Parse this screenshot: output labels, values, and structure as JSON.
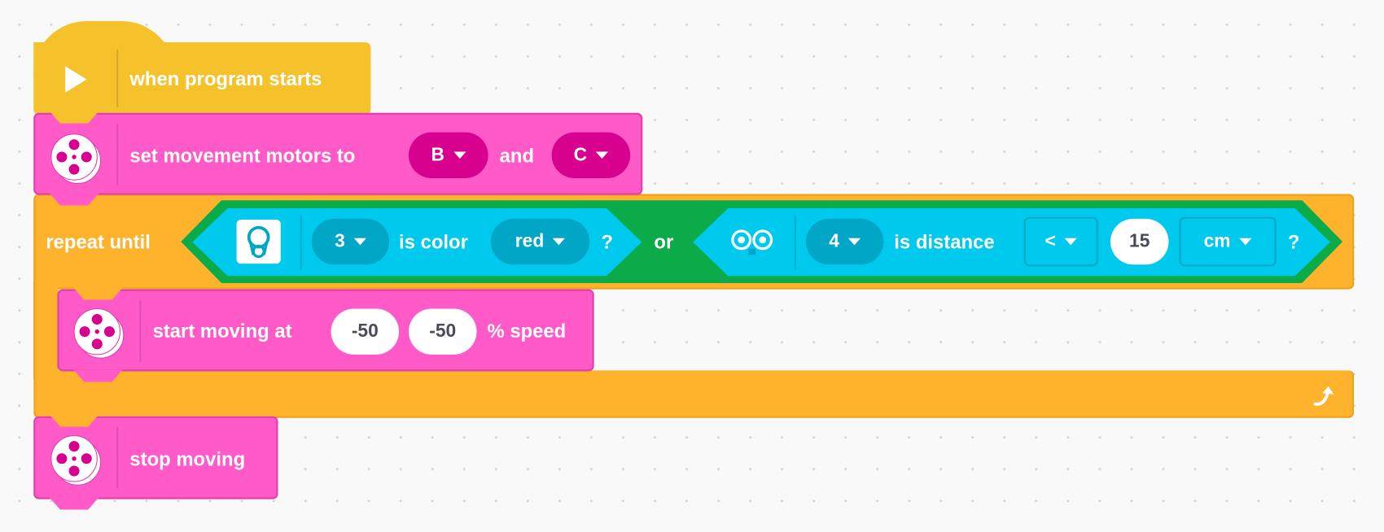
{
  "colors": {
    "events": "#f5c22c",
    "motors": "#ff5ac8",
    "motor_pill": "#d8008f",
    "control": "#ffb22c",
    "operator": "#0bab4a",
    "sensor": "#00c9ee",
    "sensor_pill": "#00a6c6"
  },
  "hat": {
    "icon": "play-icon",
    "label": "when program starts"
  },
  "set_motors": {
    "icon": "motor-icon",
    "label": "set movement motors to",
    "port1": "B",
    "and": "and",
    "port2": "C"
  },
  "repeat": {
    "label": "repeat until",
    "icon": "loop-arrow-icon",
    "cond1": {
      "icon": "color-sensor-icon",
      "port": "3",
      "label": "is color",
      "color": "red",
      "q": "?"
    },
    "or": "or",
    "cond2": {
      "icon": "distance-sensor-icon",
      "port": "4",
      "label": "is distance",
      "op": "<",
      "value": "15",
      "unit": "cm",
      "q": "?"
    }
  },
  "start_moving": {
    "icon": "motor-icon",
    "label": "start moving at",
    "left": "-50",
    "right": "-50",
    "suffix": "% speed"
  },
  "stop": {
    "icon": "motor-icon",
    "label": "stop moving"
  }
}
